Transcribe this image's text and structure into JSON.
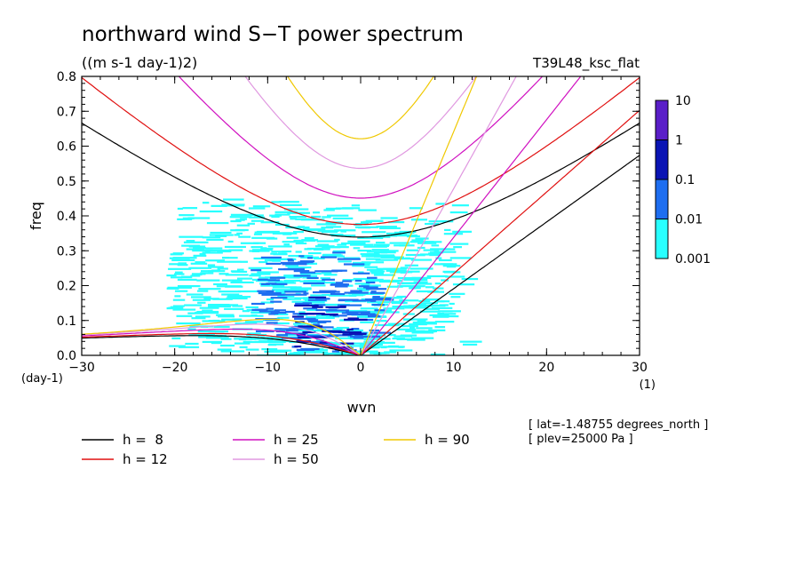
{
  "header": {
    "title": "northward wind S−T power spectrum",
    "units": "((m s-1 day-1)2)",
    "run": "T39L48_ksc_flat"
  },
  "chart_data": {
    "type": "heatmap",
    "xlabel": "wvn",
    "ylabel": "freq",
    "x_unit_label": "(1)",
    "y_unit_label": "(day-1)",
    "xlim": [
      -30,
      30
    ],
    "ylim": [
      0,
      0.8
    ],
    "x_ticks": [
      -30,
      -20,
      -10,
      0,
      10,
      20,
      30
    ],
    "x_tick_labels": [
      "−30",
      "−20",
      "−10",
      "0",
      "10",
      "20",
      "30"
    ],
    "y_ticks": [
      0,
      0.1,
      0.2,
      0.3,
      0.4,
      0.5,
      0.6,
      0.7,
      0.8
    ],
    "y_tick_labels": [
      "0.0",
      "0.1",
      "0.2",
      "0.3",
      "0.4",
      "0.5",
      "0.6",
      "0.7",
      "0.8"
    ],
    "colorbar": {
      "scale": "log",
      "labels": [
        "10",
        "1",
        "0.1",
        "0.01",
        "0.001"
      ],
      "colors": [
        "#5a1ec8",
        "#0a14b4",
        "#1e6ef0",
        "#28ffff"
      ]
    },
    "power_regions": [
      {
        "level": "0.001–0.01",
        "color": "#28ffff",
        "x_range": [
          -21,
          11
        ],
        "y_range": [
          0.0,
          0.45
        ],
        "peak_x": -6,
        "peak_y": 0.2
      },
      {
        "level": "0.01–0.1",
        "color": "#1e6ef0",
        "x_range": [
          -12,
          2
        ],
        "y_range": [
          0.01,
          0.3
        ],
        "peak_x": -5,
        "peak_y": 0.15
      },
      {
        "level": "0.1–1",
        "color": "#0a14b4",
        "x_range": [
          -8,
          0
        ],
        "y_range": [
          0.02,
          0.2
        ],
        "peak_x": -5,
        "peak_y": 0.08
      }
    ],
    "dispersion_curves": [
      {
        "name": "h =  8",
        "h": 8,
        "color": "#000000"
      },
      {
        "name": "h = 12",
        "h": 12,
        "color": "#e01010"
      },
      {
        "name": "h = 25",
        "h": 25,
        "color": "#d010c0"
      },
      {
        "name": "h = 50",
        "h": 50,
        "color": "#e098e0"
      },
      {
        "name": "h = 90",
        "h": 90,
        "color": "#f0c800"
      }
    ],
    "legend": {
      "placement": "bottom-left"
    },
    "notes": [
      "[ lat=-1.48755 degrees_north ]",
      "[ plev=25000 Pa ]"
    ]
  }
}
